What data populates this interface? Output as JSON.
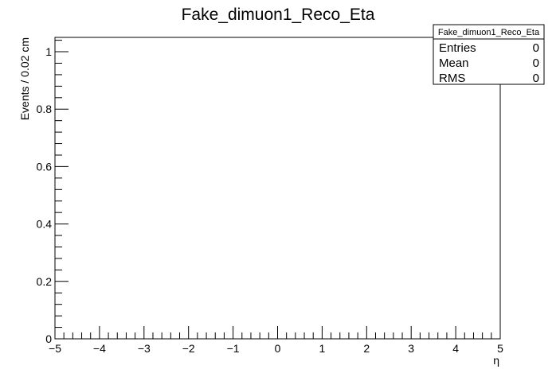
{
  "chart_data": {
    "type": "bar",
    "title": "Fake_dimuon1_Reco_Eta",
    "xlabel": "η",
    "ylabel": "Events / 0.02 cm",
    "xlim": [
      -5,
      5
    ],
    "ylim": [
      0,
      1.05
    ],
    "x_ticks": [
      -5,
      -4,
      -3,
      -2,
      -1,
      0,
      1,
      2,
      3,
      4,
      5
    ],
    "x_tick_labels": [
      "−5",
      "−4",
      "−3",
      "−2",
      "−1",
      "0",
      "1",
      "2",
      "3",
      "4",
      "5"
    ],
    "y_ticks": [
      0,
      0.2,
      0.4,
      0.6,
      0.8,
      1
    ],
    "y_tick_labels": [
      "0",
      "0.2",
      "0.4",
      "0.6",
      "0.8",
      "1"
    ],
    "series": [],
    "grid": false,
    "legend": "none"
  },
  "stats_box": {
    "title": "Fake_dimuon1_Reco_Eta",
    "rows": [
      {
        "label": "Entries",
        "value": "0"
      },
      {
        "label": "Mean",
        "value": "0"
      },
      {
        "label": "RMS",
        "value": "0"
      }
    ]
  }
}
